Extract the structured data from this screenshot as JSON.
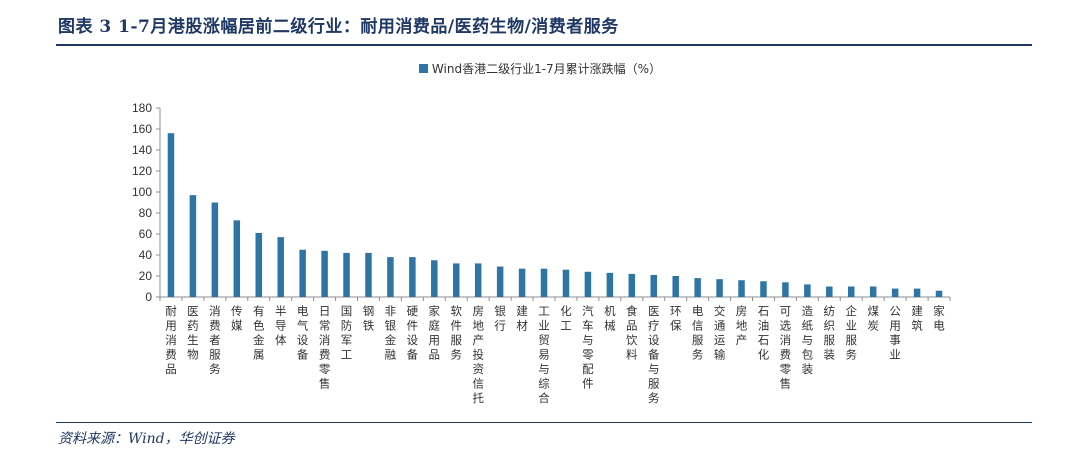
{
  "header": {
    "figure_title": "图表 3   1-7月港股涨幅居前二级行业：耐用消费品/医药生物/消费者服务"
  },
  "footer": {
    "source": "资料来源：Wind，华创证券"
  },
  "colors": {
    "bar": "#2e75a6",
    "title": "#1f3864"
  },
  "chart_data": {
    "type": "bar",
    "title": "",
    "xlabel": "",
    "ylabel": "",
    "ylim": [
      0,
      180
    ],
    "yticks": [
      0,
      20,
      40,
      60,
      80,
      100,
      120,
      140,
      160,
      180
    ],
    "legend_position": "top-center",
    "grid": false,
    "categories": [
      "耐用消费品",
      "医药生物",
      "消费者服务",
      "传媒",
      "有色金属",
      "半导体",
      "电气设备",
      "日常消费零售",
      "国防军工",
      "钢铁",
      "非银金融",
      "硬件设备",
      "家庭用品",
      "软件服务",
      "房地产投资信托",
      "银行",
      "建材",
      "工业贸易与综合",
      "化工",
      "汽车与零配件",
      "机械",
      "食品饮料",
      "医疗设备与服务",
      "环保",
      "电信服务",
      "交通运输",
      "房地产",
      "石油石化",
      "可选消费零售",
      "造纸与包装",
      "纺织服装",
      "企业服务",
      "煤炭",
      "公用事业",
      "建筑",
      "家电"
    ],
    "series": [
      {
        "name": "Wind香港二级行业1-7月累计涨跌幅（%）",
        "values": [
          156,
          97,
          90,
          73,
          61,
          57,
          45,
          44,
          42,
          42,
          38,
          38,
          35,
          32,
          32,
          29,
          27,
          27,
          26,
          24,
          23,
          22,
          21,
          20,
          18,
          17,
          16,
          15,
          14,
          12,
          10,
          10,
          10,
          8,
          8,
          6
        ]
      }
    ]
  }
}
